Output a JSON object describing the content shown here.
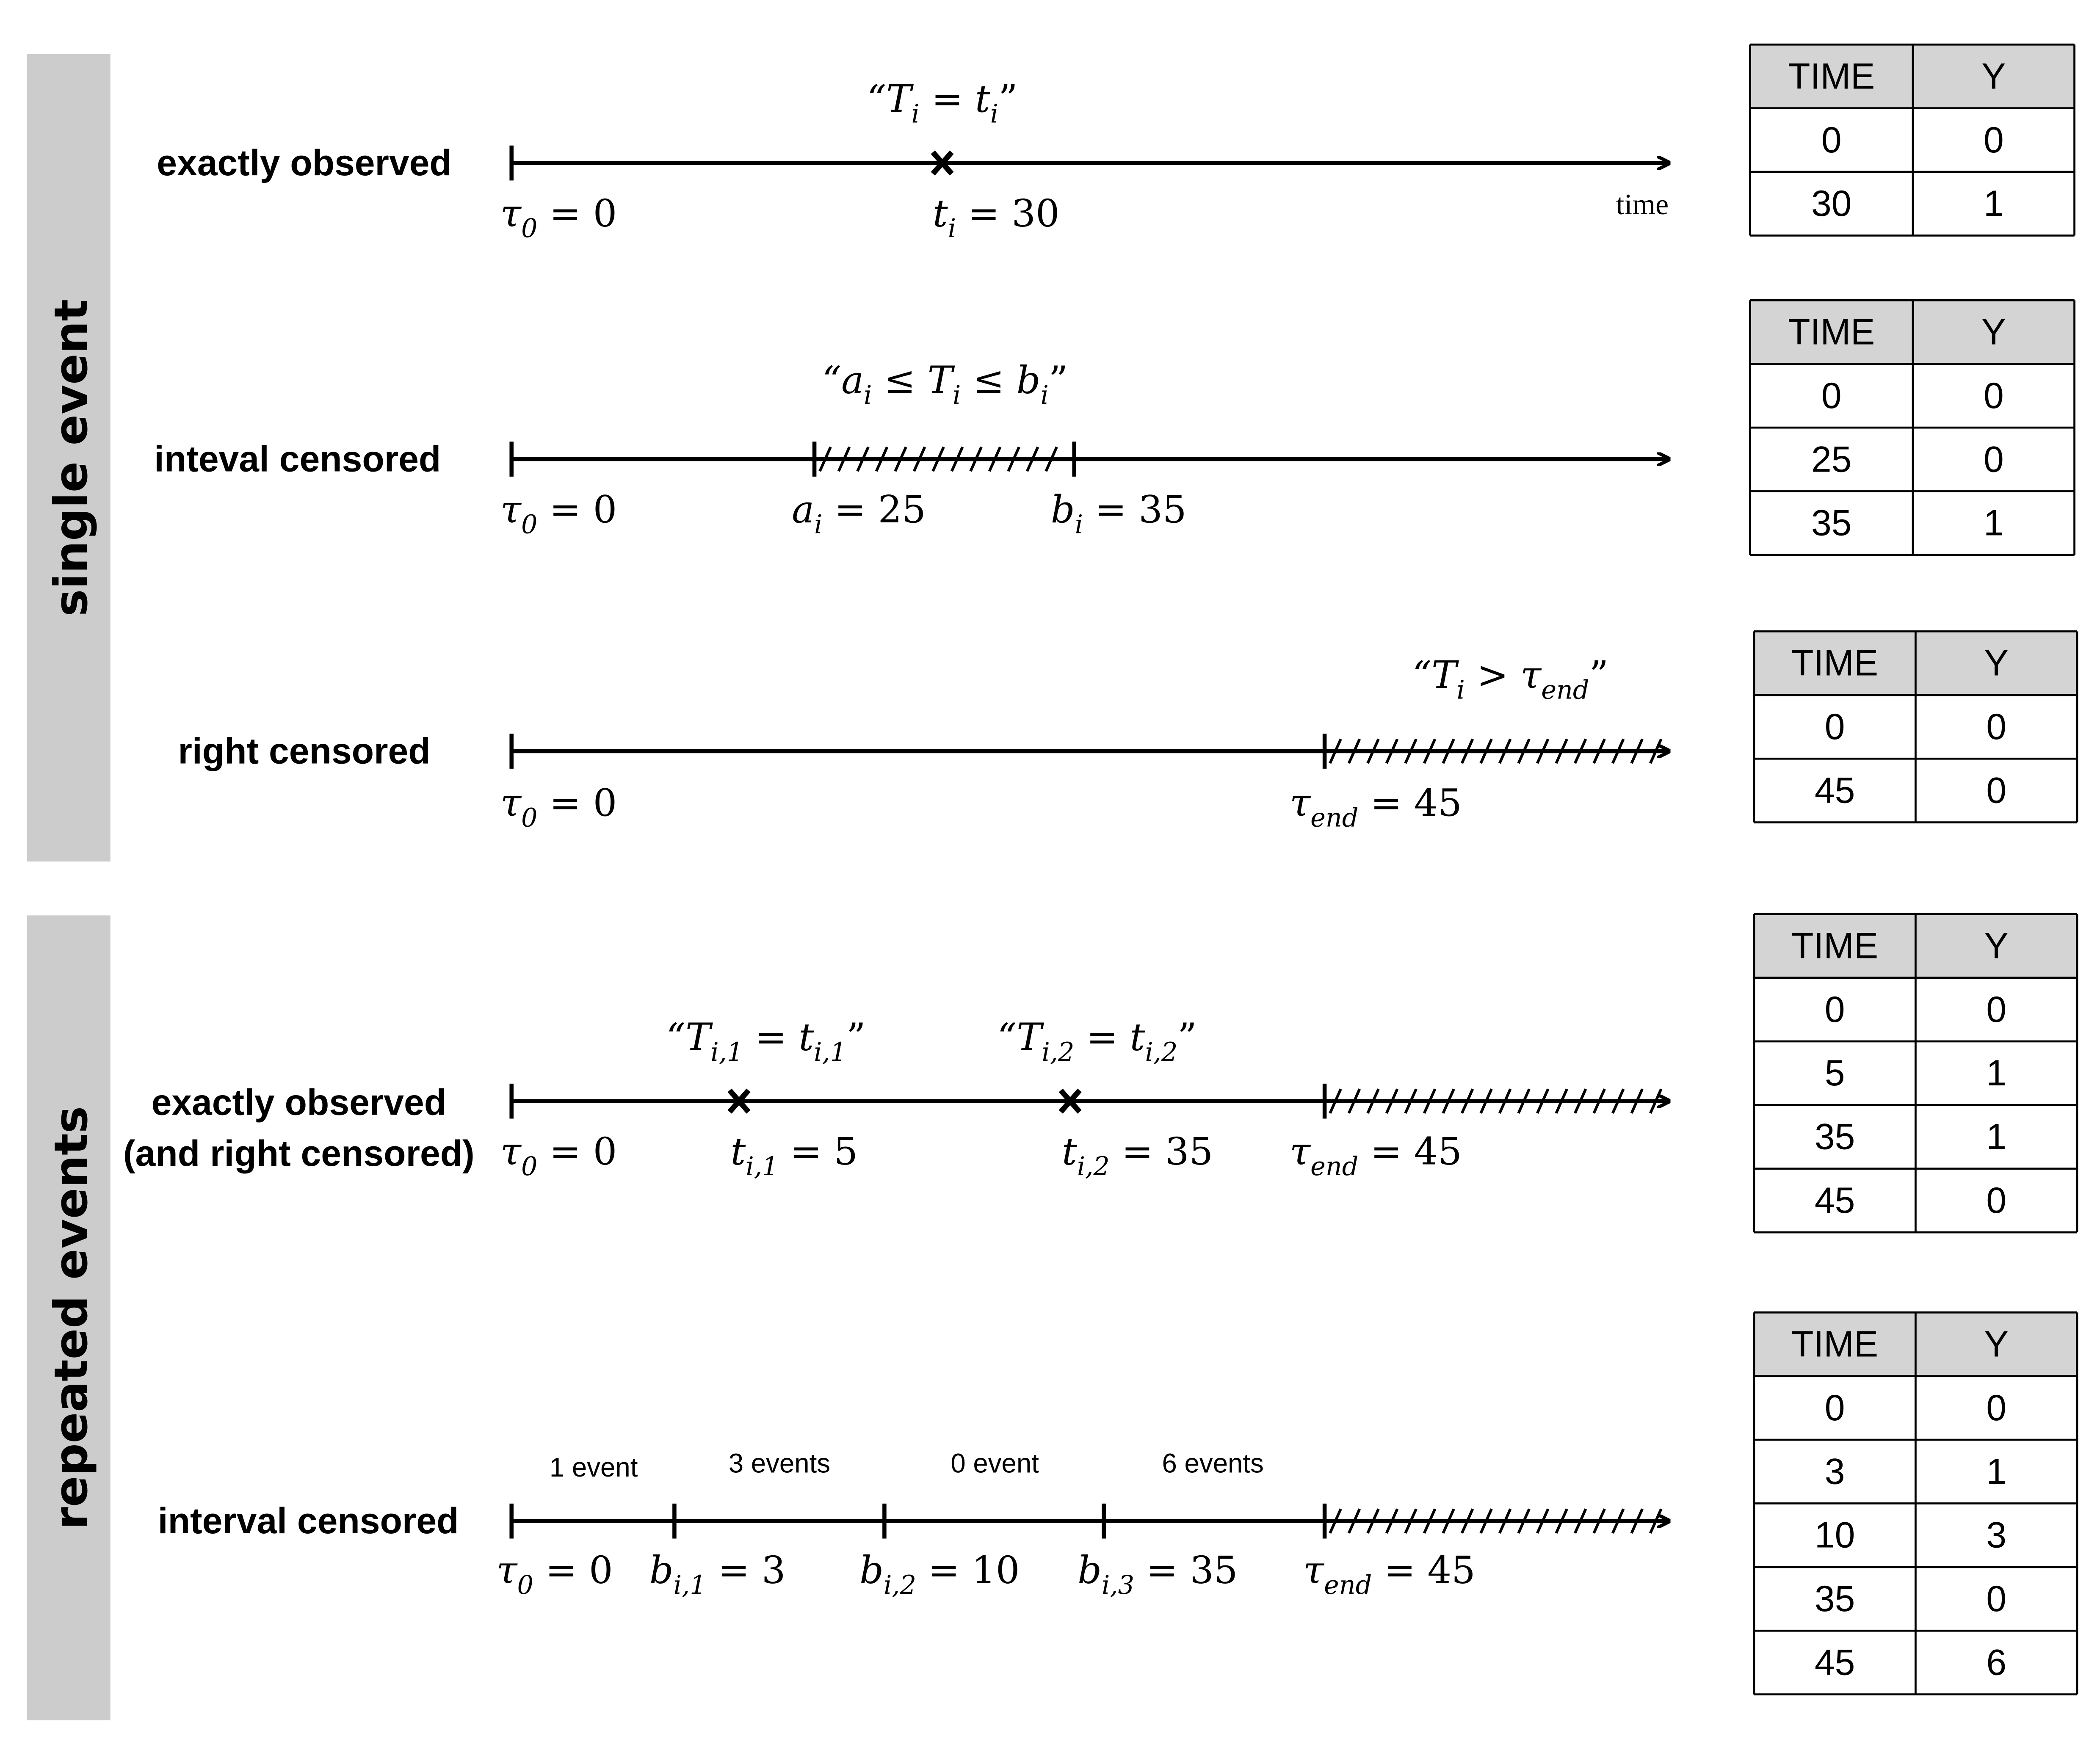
{
  "groups": [
    {
      "label": "single event",
      "color": "#cccccc"
    },
    {
      "label": "repeated events",
      "color": "#cccccc"
    }
  ],
  "rows": [
    {
      "label": [
        "exactly observed"
      ],
      "axis_word": "time",
      "quotes": [
        [
          {
            "text": "“T"
          },
          {
            "text": "i",
            "sub": true
          },
          {
            "text": " = t"
          },
          {
            "text": "i",
            "sub": true
          },
          {
            "text": "”"
          }
        ]
      ],
      "ticks": [
        [
          {
            "text": "τ"
          },
          {
            "text": "0",
            "sub": true
          },
          {
            "text": " = 0"
          }
        ],
        [
          {
            "text": "t"
          },
          {
            "text": "i",
            "sub": true
          },
          {
            "text": " = 30"
          }
        ]
      ],
      "event_marks": [
        "x"
      ],
      "table": {
        "headers": [
          "TIME",
          "Y"
        ],
        "rows": [
          [
            "0",
            "0"
          ],
          [
            "30",
            "1"
          ]
        ]
      }
    },
    {
      "label": [
        "inteval censored"
      ],
      "quotes": [
        [
          {
            "text": "“a"
          },
          {
            "text": "i",
            "sub": true
          },
          {
            "text": " ≤ T"
          },
          {
            "text": "i",
            "sub": true
          },
          {
            "text": " ≤ b"
          },
          {
            "text": "i",
            "sub": true
          },
          {
            "text": "”"
          }
        ]
      ],
      "ticks": [
        [
          {
            "text": "τ"
          },
          {
            "text": "0",
            "sub": true
          },
          {
            "text": " = 0"
          }
        ],
        [
          {
            "text": "a"
          },
          {
            "text": "i",
            "sub": true
          },
          {
            "text": " = 25"
          }
        ],
        [
          {
            "text": "b"
          },
          {
            "text": "i",
            "sub": true
          },
          {
            "text": " = 35"
          }
        ]
      ],
      "table": {
        "headers": [
          "TIME",
          "Y"
        ],
        "rows": [
          [
            "0",
            "0"
          ],
          [
            "25",
            "0"
          ],
          [
            "35",
            "1"
          ]
        ]
      }
    },
    {
      "label": [
        "right censored"
      ],
      "quotes": [
        [
          {
            "text": "“T"
          },
          {
            "text": "i",
            "sub": true
          },
          {
            "text": " > τ"
          },
          {
            "text": "end",
            "sub": true
          },
          {
            "text": "”"
          }
        ]
      ],
      "ticks": [
        [
          {
            "text": "τ"
          },
          {
            "text": "0",
            "sub": true
          },
          {
            "text": " = 0"
          }
        ],
        [
          {
            "text": "τ"
          },
          {
            "text": "end",
            "sub": true
          },
          {
            "text": " = 45"
          }
        ]
      ],
      "table": {
        "headers": [
          "TIME",
          "Y"
        ],
        "rows": [
          [
            "0",
            "0"
          ],
          [
            "45",
            "0"
          ]
        ]
      }
    },
    {
      "label": [
        "exactly observed",
        "(and right censored)"
      ],
      "quotes": [
        [
          {
            "text": "“T"
          },
          {
            "text": "i,1",
            "sub": true
          },
          {
            "text": " = t"
          },
          {
            "text": "i,1",
            "sub": true
          },
          {
            "text": "”"
          }
        ],
        [
          {
            "text": "“T"
          },
          {
            "text": "i,2",
            "sub": true
          },
          {
            "text": " = t"
          },
          {
            "text": "i,2",
            "sub": true
          },
          {
            "text": "”"
          }
        ]
      ],
      "ticks": [
        [
          {
            "text": "τ"
          },
          {
            "text": "0",
            "sub": true
          },
          {
            "text": " = 0"
          }
        ],
        [
          {
            "text": "t"
          },
          {
            "text": "i,1",
            "sub": true
          },
          {
            "text": " = 5"
          }
        ],
        [
          {
            "text": "t"
          },
          {
            "text": "i,2",
            "sub": true
          },
          {
            "text": " = 35"
          }
        ],
        [
          {
            "text": "τ"
          },
          {
            "text": "end",
            "sub": true
          },
          {
            "text": " = 45"
          }
        ]
      ],
      "event_marks": [
        "x",
        "x"
      ],
      "table": {
        "headers": [
          "TIME",
          "Y"
        ],
        "rows": [
          [
            "0",
            "0"
          ],
          [
            "5",
            "1"
          ],
          [
            "35",
            "1"
          ],
          [
            "45",
            "0"
          ]
        ]
      }
    },
    {
      "label": [
        "interval censored"
      ],
      "interval_counts": [
        "1 event",
        "3 events",
        "0 event",
        "6 events"
      ],
      "ticks": [
        [
          {
            "text": "τ"
          },
          {
            "text": "0",
            "sub": true
          },
          {
            "text": " = 0"
          }
        ],
        [
          {
            "text": "b"
          },
          {
            "text": "i,1",
            "sub": true
          },
          {
            "text": " = 3"
          }
        ],
        [
          {
            "text": "b"
          },
          {
            "text": "i,2",
            "sub": true
          },
          {
            "text": " = 10"
          }
        ],
        [
          {
            "text": "b"
          },
          {
            "text": "i,3",
            "sub": true
          },
          {
            "text": " = 35"
          }
        ],
        [
          {
            "text": "τ"
          },
          {
            "text": "end",
            "sub": true
          },
          {
            "text": " = 45"
          }
        ]
      ],
      "table": {
        "headers": [
          "TIME",
          "Y"
        ],
        "rows": [
          [
            "0",
            "0"
          ],
          [
            "3",
            "1"
          ],
          [
            "10",
            "3"
          ],
          [
            "35",
            "0"
          ],
          [
            "45",
            "6"
          ]
        ]
      }
    }
  ]
}
